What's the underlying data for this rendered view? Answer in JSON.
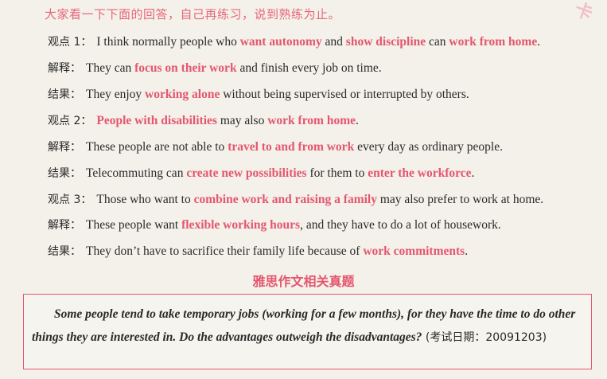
{
  "instruction": "大家看一下下面的回答，自己再练习，说到熟练为止。",
  "section_title": "雅思作文相关真题",
  "lines": [
    {
      "label": "观点 1：",
      "segs": [
        {
          "t": "I think normally people who "
        },
        {
          "t": "want autonomy",
          "hl": true
        },
        {
          "t": " and "
        },
        {
          "t": "show discipline",
          "hl": true
        },
        {
          "t": " can "
        },
        {
          "t": "work from home",
          "hl": true
        },
        {
          "t": "."
        }
      ]
    },
    {
      "label": "解释：",
      "segs": [
        {
          "t": "They can "
        },
        {
          "t": "focus on their work",
          "hl": true
        },
        {
          "t": " and finish every job on time."
        }
      ]
    },
    {
      "label": "结果：",
      "segs": [
        {
          "t": "They enjoy "
        },
        {
          "t": "working alone",
          "hl": true
        },
        {
          "t": " without being supervised or interrupted by others."
        }
      ]
    },
    {
      "label": "观点 2：",
      "segs": [
        {
          "t": "People with disabilities",
          "hl": true
        },
        {
          "t": " may also "
        },
        {
          "t": "work from home",
          "hl": true
        },
        {
          "t": "."
        }
      ]
    },
    {
      "label": "解释：",
      "segs": [
        {
          "t": "These people are not able to "
        },
        {
          "t": "travel to and from work",
          "hl": true
        },
        {
          "t": " every day as ordinary people."
        }
      ]
    },
    {
      "label": "结果：",
      "segs": [
        {
          "t": "Telecommuting can "
        },
        {
          "t": "create new possibilities",
          "hl": true
        },
        {
          "t": " for them to "
        },
        {
          "t": "enter the workforce",
          "hl": true
        },
        {
          "t": "."
        }
      ]
    },
    {
      "label": "观点 3：",
      "segs": [
        {
          "t": "Those who want to "
        },
        {
          "t": "combine work and raising a family",
          "hl": true
        },
        {
          "t": " may also prefer to work at home."
        }
      ]
    },
    {
      "label": "解释：",
      "segs": [
        {
          "t": "These people want "
        },
        {
          "t": "flexible working hours",
          "hl": true
        },
        {
          "t": ", and they have to do a lot of housework."
        }
      ]
    },
    {
      "label": "结果：",
      "segs": [
        {
          "t": "They don’t have to sacrifice their family life because of "
        },
        {
          "t": "work commitments",
          "hl": true
        },
        {
          "t": "."
        }
      ]
    }
  ],
  "question": {
    "text": "Some people tend to take temporary jobs (working for a few months), for they have the time to do other things they are interested in. Do the advantages outweigh the disadvantages?",
    "tail": " (考试日期：20091203)"
  }
}
